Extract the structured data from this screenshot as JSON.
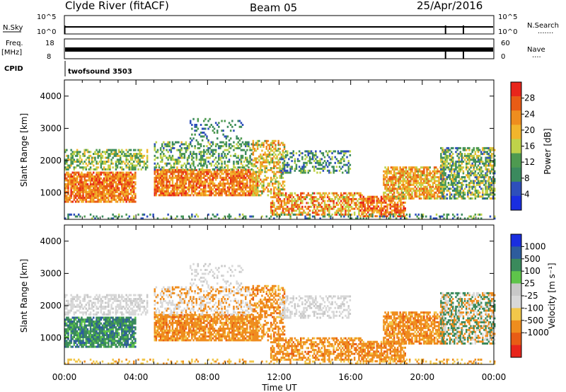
{
  "header": {
    "station": "Clyde River (fitACF)",
    "beam": "Beam 05",
    "date": "25/Apr/2016"
  },
  "strip1": {
    "left_label": "N.Sky",
    "left_top": "10^5",
    "left_bottom": "10^0",
    "right_label": "N.Search",
    "right_top": "10^5",
    "right_bottom": "10^0",
    "right_dots": "·······"
  },
  "strip2": {
    "left_label_1": "Freq.",
    "left_label_2": "[MHz]",
    "left_top": "18",
    "left_bottom": "8",
    "right_label": "Nave",
    "right_top": "60",
    "right_bottom": "0",
    "right_dots": "····"
  },
  "cpid": {
    "label": "CPID",
    "value": "twofsound 3503"
  },
  "colors": {
    "frame": "#000000",
    "power": [
      "#1a2ee0",
      "#2e4fbb",
      "#3b8a5e",
      "#4e9a50",
      "#bfd24a",
      "#f2b52c",
      "#ef8d1e",
      "#e85c15",
      "#e8251b"
    ],
    "velocity": [
      "#1a2ee0",
      "#2d5c9d",
      "#3a8a5c",
      "#5ec44a",
      "#c8c8c8",
      "#d8d8d8",
      "#f2c74a",
      "#ef8d1e",
      "#e85c15",
      "#e8251b"
    ]
  },
  "chart_data": [
    {
      "type": "heatmap",
      "name": "power",
      "ylabel": "Slant Range [km]",
      "yticks": [
        "1000",
        "2000",
        "3000",
        "4000"
      ],
      "ylim": [
        180,
        4500
      ],
      "xlim_hours": [
        0,
        24
      ],
      "colorbar": {
        "label": "Power [dB]",
        "ticks": [
          "4",
          "8",
          "12",
          "16",
          "20",
          "24",
          "28"
        ],
        "range": [
          0,
          32
        ]
      }
    },
    {
      "type": "heatmap",
      "name": "velocity",
      "ylabel": "Slant Range [km]",
      "yticks": [
        "1000",
        "2000",
        "3000",
        "4000"
      ],
      "ylim": [
        180,
        4500
      ],
      "xlim_hours": [
        0,
        24
      ],
      "colorbar": {
        "label": "Velocity [m s⁻¹]",
        "ticks": [
          "1000",
          "500",
          "100",
          "25",
          "-25",
          "-100",
          "-500",
          "-1000"
        ]
      },
      "xticks": [
        "00:00",
        "04:00",
        "08:00",
        "12:00",
        "16:00",
        "20:00",
        "00:00"
      ],
      "xlabel": "Time UT"
    }
  ]
}
